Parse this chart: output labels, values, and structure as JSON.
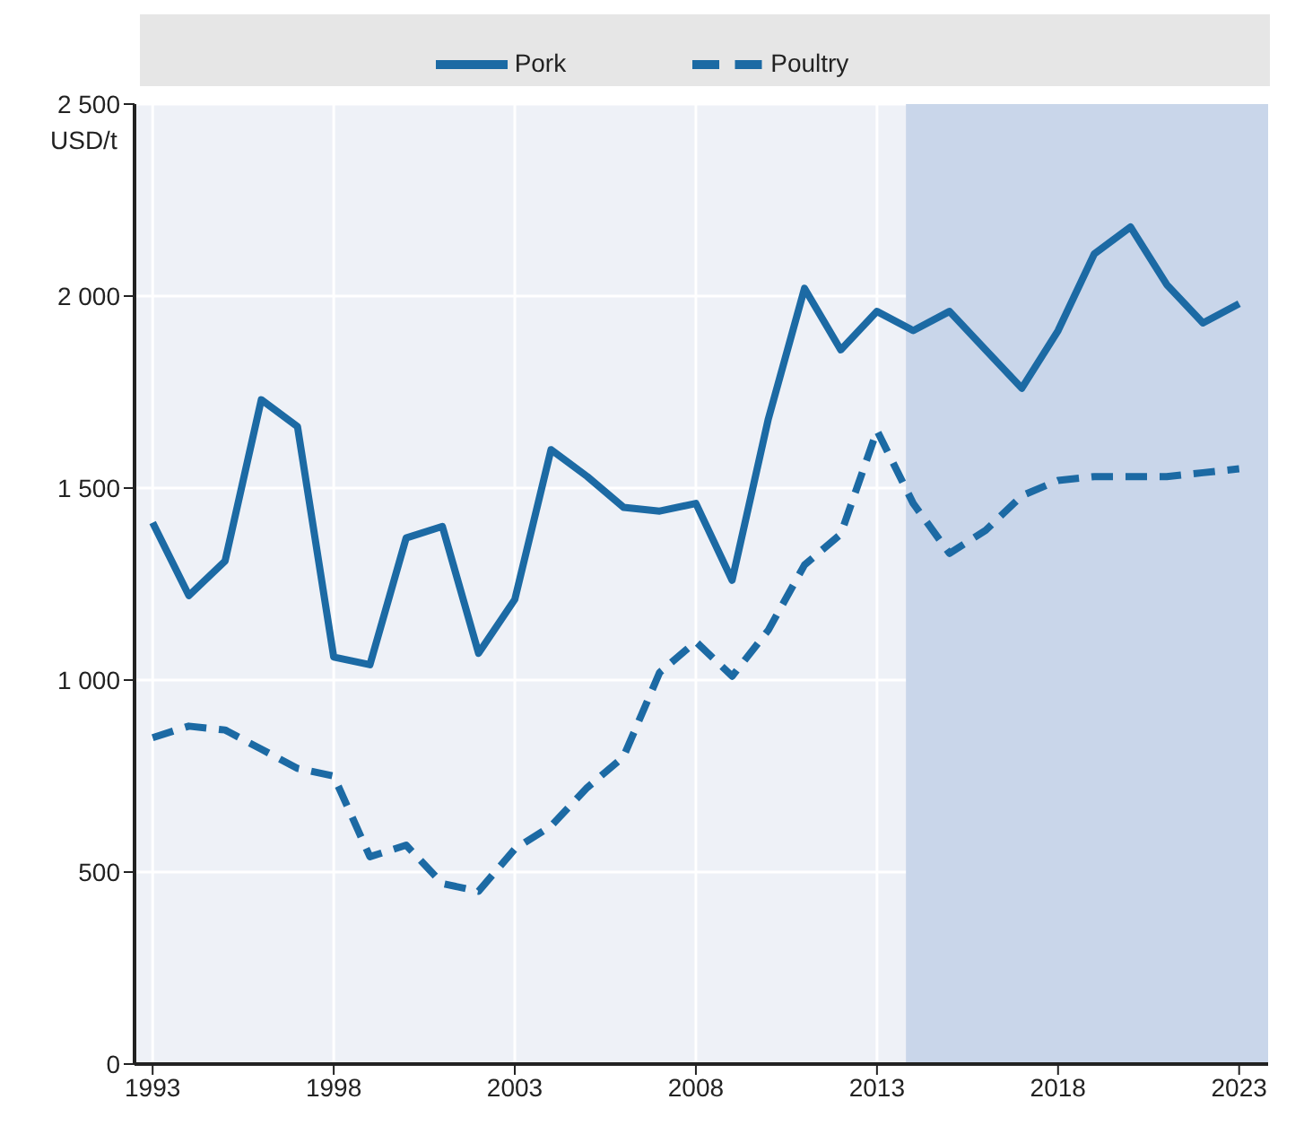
{
  "chart_data": {
    "type": "line",
    "ylabel": "USD/t",
    "x": [
      1993,
      1994,
      1995,
      1996,
      1997,
      1998,
      1999,
      2000,
      2001,
      2002,
      2003,
      2004,
      2005,
      2006,
      2007,
      2008,
      2009,
      2010,
      2011,
      2012,
      2013,
      2014,
      2015,
      2016,
      2017,
      2018,
      2019,
      2020,
      2021,
      2022,
      2023
    ],
    "series": [
      {
        "name": "Pork",
        "color": "#1c6aa4",
        "line_style": "solid",
        "values": [
          1410,
          1220,
          1310,
          1730,
          1660,
          1060,
          1040,
          1370,
          1400,
          1070,
          1210,
          1600,
          1530,
          1450,
          1440,
          1460,
          1260,
          1680,
          2020,
          1860,
          1960,
          1910,
          1960,
          1860,
          1760,
          1910,
          2110,
          2180,
          2030,
          1930,
          1980
        ]
      },
      {
        "name": "Poultry",
        "color": "#1c6aa4",
        "line_style": "dashed",
        "values": [
          850,
          880,
          870,
          820,
          770,
          750,
          540,
          570,
          470,
          450,
          560,
          620,
          720,
          800,
          1020,
          1100,
          1010,
          1130,
          1300,
          1380,
          1650,
          1460,
          1330,
          1390,
          1480,
          1520,
          1530,
          1530,
          1530,
          1540,
          1550
        ]
      }
    ],
    "xlim": [
      1992.5,
      2023.8
    ],
    "xticks": [
      1993,
      1998,
      2003,
      2008,
      2013,
      2018,
      2023
    ],
    "ylim": [
      0,
      2500
    ],
    "yticks": [
      0,
      500,
      {
        "value": 1000,
        "label": "1 000"
      },
      {
        "value": 1500,
        "label": "1 500"
      },
      {
        "value": 2000,
        "label": "2 000"
      },
      {
        "value": 2500,
        "label": "2 500"
      }
    ],
    "bands": [
      {
        "axis": "x",
        "from": 2013.8,
        "to": 2023.8,
        "color": "#c9d6ea"
      }
    ],
    "grid": true,
    "legend": "top",
    "marker": "none"
  }
}
